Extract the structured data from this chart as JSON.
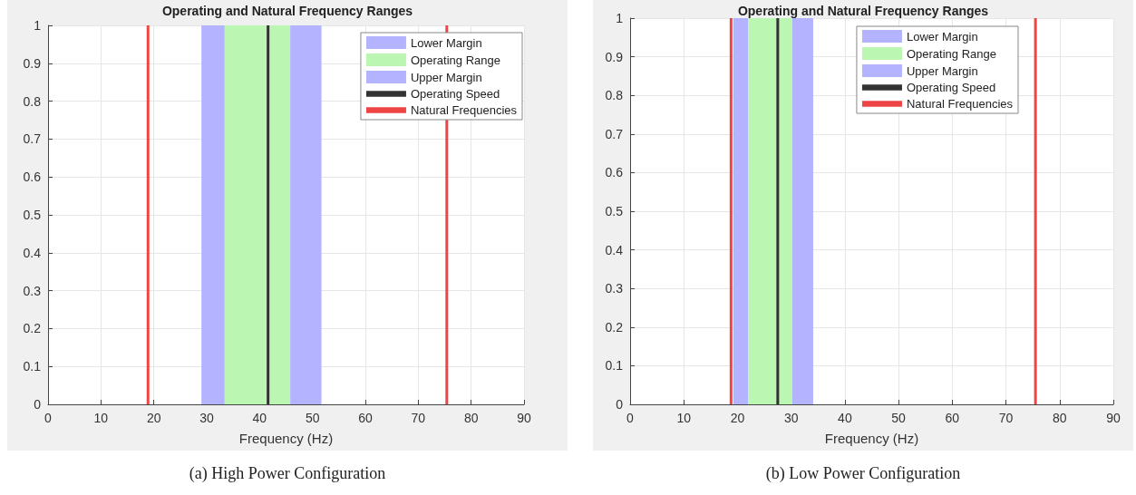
{
  "chart_data": [
    {
      "type": "line",
      "title": "Operating and Natural Frequency Ranges",
      "subtitle": "(a) High Power Configuration",
      "xlabel": "Frequency (Hz)",
      "xlim": [
        0,
        90
      ],
      "xticks": [
        0,
        10,
        20,
        30,
        40,
        50,
        60,
        70,
        80,
        90
      ],
      "ylim": [
        0,
        1
      ],
      "yticks": [
        0,
        0.1,
        0.2,
        0.3,
        0.4,
        0.5,
        0.6,
        0.7,
        0.8,
        0.9,
        1
      ],
      "grid": true,
      "legend": "top right",
      "marker": "none",
      "series": [
        {
          "name": "Lower Margin",
          "type": "area",
          "color": "#b3b3ff",
          "x": [
            29.0,
            33.4
          ],
          "values": [
            1,
            1
          ]
        },
        {
          "name": "Operating Range",
          "type": "area",
          "color": "#bbf7b3",
          "x": [
            33.4,
            45.8
          ],
          "values": [
            1,
            1
          ]
        },
        {
          "name": "Upper Margin",
          "type": "area",
          "color": "#b3b3ff",
          "x": [
            45.8,
            51.7
          ],
          "values": [
            1,
            1
          ]
        },
        {
          "name": "Operating Speed",
          "type": "line",
          "color": "#333333",
          "x": [
            41.6,
            41.6
          ],
          "values": [
            0,
            1
          ]
        },
        {
          "name": "Natural Frequencies",
          "type": "line",
          "color": "#ee4444",
          "x": [
            18.9,
            18.9,
            null,
            75.4,
            75.4
          ],
          "values": [
            0,
            1,
            null,
            1,
            0
          ]
        }
      ]
    },
    {
      "type": "line",
      "title": "Operating and Natural Frequency Ranges",
      "subtitle": "(b) Low Power Configuration",
      "xlabel": "Frequency (Hz)",
      "xlim": [
        0,
        90
      ],
      "xticks": [
        0,
        10,
        20,
        30,
        40,
        50,
        60,
        70,
        80,
        90
      ],
      "ylim": [
        0,
        1
      ],
      "yticks": [
        0,
        0.1,
        0.2,
        0.3,
        0.4,
        0.5,
        0.6,
        0.7,
        0.8,
        0.9,
        1
      ],
      "grid": true,
      "legend": "top right",
      "marker": "none",
      "series": [
        {
          "name": "Lower Margin",
          "type": "area",
          "color": "#b3b3ff",
          "x": [
            19.2,
            22.0
          ],
          "values": [
            1,
            1
          ]
        },
        {
          "name": "Operating Range",
          "type": "area",
          "color": "#bbf7b3",
          "x": [
            22.0,
            30.2
          ],
          "values": [
            1,
            1
          ]
        },
        {
          "name": "Upper Margin",
          "type": "area",
          "color": "#b3b3ff",
          "x": [
            30.2,
            34.1
          ],
          "values": [
            1,
            1
          ]
        },
        {
          "name": "Operating Speed",
          "type": "line",
          "color": "#333333",
          "x": [
            27.5,
            27.5
          ],
          "values": [
            0,
            1
          ]
        },
        {
          "name": "Natural Frequencies",
          "type": "line",
          "color": "#ee4444",
          "x": [
            18.8,
            18.8,
            null,
            75.5,
            75.5
          ],
          "values": [
            0,
            1,
            null,
            1,
            0
          ]
        }
      ]
    }
  ]
}
